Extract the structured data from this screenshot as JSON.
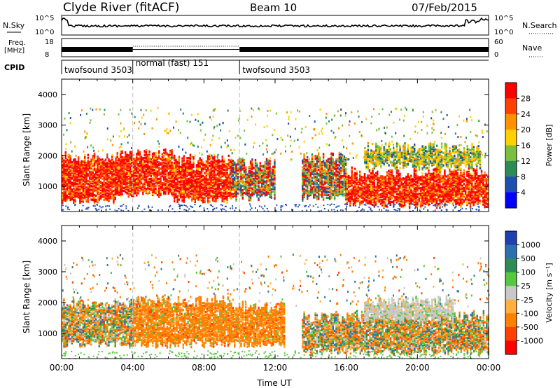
{
  "header": {
    "station": "Clyde River (fitACF)",
    "beam": "Beam 10",
    "date": "07/Feb/2015"
  },
  "strip_noise": {
    "left_label": "N.Sky",
    "right_label": "N.Search",
    "left_ticks": [
      "10^5",
      "10^0"
    ],
    "right_ticks": [
      "10^5",
      "10^0"
    ]
  },
  "strip_freq": {
    "left_label_1": "Freq.",
    "left_label_2": "[MHz]",
    "right_label": "Nave",
    "left_ticks": [
      "18",
      "8"
    ],
    "right_ticks": [
      "60",
      "0"
    ]
  },
  "cpid": {
    "label": "CPID",
    "segments": [
      {
        "name": "twofsound 3503",
        "start_h": 0,
        "end_h": 4
      },
      {
        "name": "normal (fast) 151",
        "start_h": 4,
        "end_h": 10
      },
      {
        "name": "twofsound 3503",
        "start_h": 10,
        "end_h": 24
      }
    ]
  },
  "chart_data": [
    {
      "type": "heatmap",
      "name": "power-panel",
      "ylabel": "Slant Range [km]",
      "ylim": [
        180,
        4500
      ],
      "yticks": [
        1000,
        2000,
        3000,
        4000
      ],
      "xlim_hours": [
        0,
        24
      ],
      "colorbar": {
        "label": "Power [dB]",
        "ticks": [
          "4",
          "8",
          "12",
          "16",
          "20",
          "24",
          "28"
        ],
        "colors": [
          "#0000ff",
          "#1e4fb0",
          "#2e8b57",
          "#7cbf3f",
          "#ffd000",
          "#ff9000",
          "#ff4000",
          "#ff0000"
        ]
      },
      "bands": [
        {
          "t0": 0.0,
          "t1": 3.0,
          "r0": 600,
          "r1": 2000,
          "level": "high"
        },
        {
          "t0": 3.0,
          "t1": 6.2,
          "r0": 800,
          "r1": 2100,
          "level": "high"
        },
        {
          "t0": 6.2,
          "t1": 9.5,
          "r0": 600,
          "r1": 1900,
          "level": "high"
        },
        {
          "t0": 9.5,
          "t1": 12.0,
          "r0": 700,
          "r1": 1800,
          "level": "mid"
        },
        {
          "t0": 13.5,
          "t1": 16.0,
          "r0": 700,
          "r1": 2000,
          "level": "mid"
        },
        {
          "t0": 16.0,
          "t1": 24.0,
          "r0": 450,
          "r1": 1500,
          "level": "high"
        },
        {
          "t0": 17.0,
          "t1": 23.5,
          "r0": 1700,
          "r1": 2300,
          "level": "low"
        }
      ]
    },
    {
      "type": "heatmap",
      "name": "velocity-panel",
      "ylabel": "Slant Range [km]",
      "xlabel": "Time UT",
      "ylim": [
        180,
        4500
      ],
      "yticks": [
        1000,
        2000,
        3000,
        4000
      ],
      "xlim_hours": [
        0,
        24
      ],
      "xticks": [
        "00:00",
        "04:00",
        "08:00",
        "12:00",
        "16:00",
        "20:00",
        "00:00"
      ],
      "colorbar": {
        "label": "Velocity [m s⁻¹]",
        "ticks": [
          "1000",
          "500",
          "100",
          "25",
          "-25",
          "-100",
          "-500",
          "-1000"
        ],
        "colors": [
          "#1e40b0",
          "#2e6fb0",
          "#2e8b57",
          "#55c840",
          "#c8c8c8",
          "#ffb040",
          "#ff8000",
          "#ff4000",
          "#ff0000"
        ]
      },
      "bands": [
        {
          "t0": 0.0,
          "t1": 4.0,
          "r0": 700,
          "r1": 2000,
          "level": "mixed"
        },
        {
          "t0": 4.0,
          "t1": 9.5,
          "r0": 700,
          "r1": 2100,
          "level": "neg"
        },
        {
          "t0": 9.5,
          "t1": 12.5,
          "r0": 700,
          "r1": 1900,
          "level": "neg"
        },
        {
          "t0": 13.5,
          "t1": 24.0,
          "r0": 450,
          "r1": 1600,
          "level": "mixed"
        },
        {
          "t0": 17.0,
          "t1": 22.0,
          "r0": 1500,
          "r1": 2100,
          "level": "zero"
        }
      ]
    }
  ]
}
